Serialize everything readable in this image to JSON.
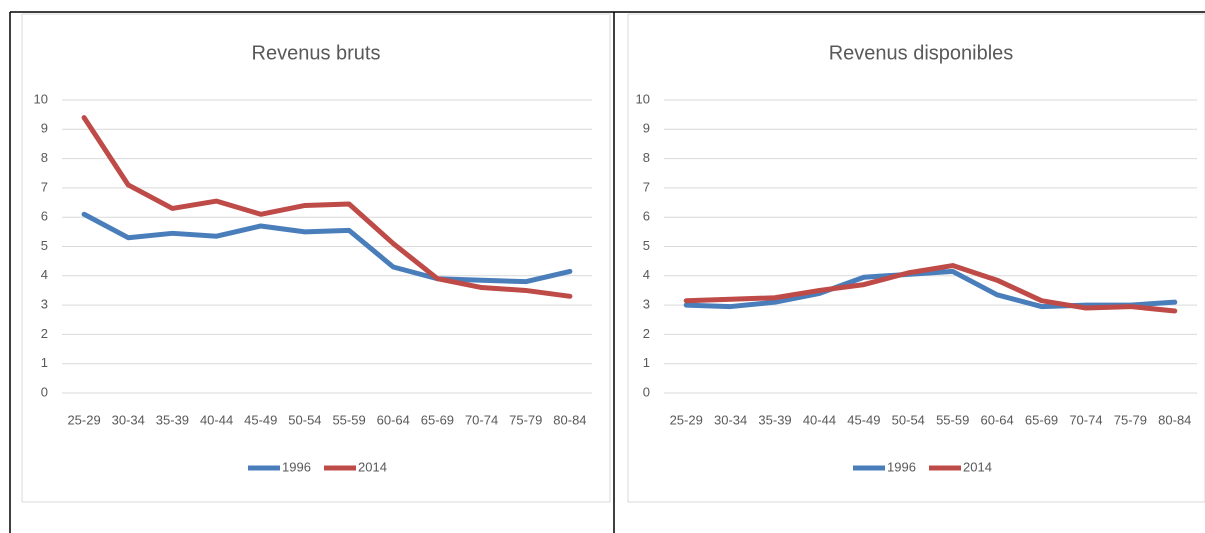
{
  "chart_data": [
    {
      "type": "line",
      "title": "Revenus bruts",
      "categories": [
        "25-29",
        "30-34",
        "35-39",
        "40-44",
        "45-49",
        "50-54",
        "55-59",
        "60-64",
        "65-69",
        "70-74",
        "75-79",
        "80-84"
      ],
      "series": [
        {
          "name": "1996",
          "color": "#4a7ebb",
          "values": [
            6.1,
            5.3,
            5.45,
            5.35,
            5.7,
            5.5,
            5.55,
            4.3,
            3.9,
            3.85,
            3.8,
            4.15
          ]
        },
        {
          "name": "2014",
          "color": "#be4b48",
          "values": [
            9.4,
            7.1,
            6.3,
            6.55,
            6.1,
            6.4,
            6.45,
            5.1,
            3.9,
            3.6,
            3.5,
            3.3
          ]
        }
      ],
      "ylim": [
        0,
        10
      ],
      "yticks": [
        0,
        1,
        2,
        3,
        4,
        5,
        6,
        7,
        8,
        9,
        10
      ],
      "grid": true,
      "legend": "bottom"
    },
    {
      "type": "line",
      "title": "Revenus disponibles",
      "categories": [
        "25-29",
        "30-34",
        "35-39",
        "40-44",
        "45-49",
        "50-54",
        "55-59",
        "60-64",
        "65-69",
        "70-74",
        "75-79",
        "80-84"
      ],
      "series": [
        {
          "name": "1996",
          "color": "#4a7ebb",
          "values": [
            3.0,
            2.95,
            3.1,
            3.4,
            3.95,
            4.05,
            4.15,
            3.35,
            2.95,
            3.0,
            3.0,
            3.1
          ]
        },
        {
          "name": "2014",
          "color": "#be4b48",
          "values": [
            3.15,
            3.2,
            3.25,
            3.5,
            3.7,
            4.1,
            4.35,
            3.85,
            3.15,
            2.9,
            2.95,
            2.8
          ]
        }
      ],
      "ylim": [
        0,
        10
      ],
      "yticks": [
        0,
        1,
        2,
        3,
        4,
        5,
        6,
        7,
        8,
        9,
        10
      ],
      "grid": true,
      "legend": "bottom"
    }
  ]
}
